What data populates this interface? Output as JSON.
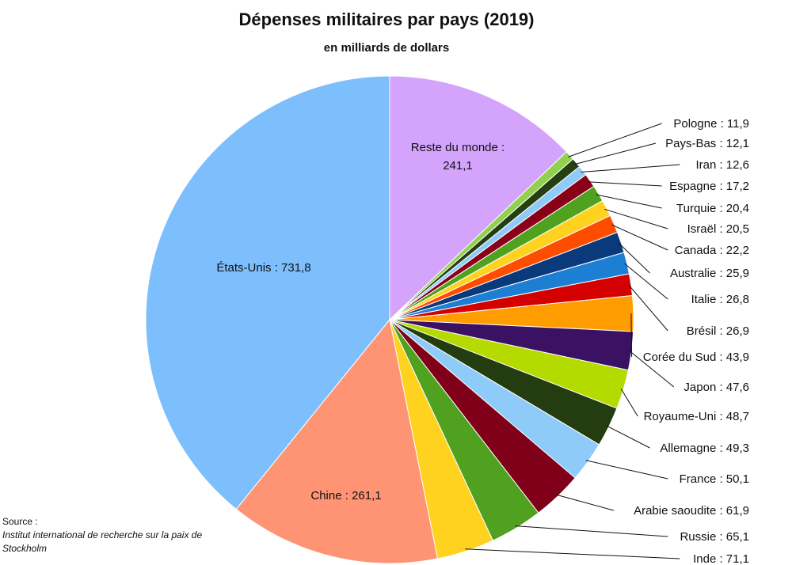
{
  "title": "Dépenses militaires par pays (2019)",
  "subtitle": "en milliards de dollars",
  "source": {
    "label": "Source :",
    "text": "Institut international de recherche sur la paix de Stockholm"
  },
  "chart_data": {
    "type": "pie",
    "unit": "milliards de dollars",
    "start": "top",
    "direction": "clockwise",
    "slices": [
      {
        "label": "Reste du monde",
        "value": 241.1,
        "display": "241,1",
        "color": "#D4A3FB"
      },
      {
        "label": "Pologne",
        "value": 11.9,
        "display": "11,9",
        "color": "#92D050"
      },
      {
        "label": "Pays-Bas",
        "value": 12.1,
        "display": "12,1",
        "color": "#243F12"
      },
      {
        "label": "Iran",
        "value": 12.6,
        "display": "12,6",
        "color": "#8FCBF8"
      },
      {
        "label": "Espagne",
        "value": 17.2,
        "display": "17,2",
        "color": "#8B0019"
      },
      {
        "label": "Turquie",
        "value": 20.4,
        "display": "20,4",
        "color": "#4FA11F"
      },
      {
        "label": "Israël",
        "value": 20.5,
        "display": "20,5",
        "color": "#FFD21F"
      },
      {
        "label": "Canada",
        "value": 22.2,
        "display": "22,2",
        "color": "#FF4D00"
      },
      {
        "label": "Australie",
        "value": 25.9,
        "display": "25,9",
        "color": "#0A3A7C"
      },
      {
        "label": "Italie",
        "value": 26.8,
        "display": "26,8",
        "color": "#1D7FD3"
      },
      {
        "label": "Brésil",
        "value": 26.9,
        "display": "26,9",
        "color": "#D40000"
      },
      {
        "label": "Corée du Sud",
        "value": 43.9,
        "display": "43,9",
        "color": "#FF9C00"
      },
      {
        "label": "Japon",
        "value": 47.6,
        "display": "47,6",
        "color": "#3B1163"
      },
      {
        "label": "Royaume-Uni",
        "value": 48.7,
        "display": "48,7",
        "color": "#B5DA00"
      },
      {
        "label": "Allemagne",
        "value": 49.3,
        "display": "49,3",
        "color": "#233C10"
      },
      {
        "label": "France",
        "value": 50.1,
        "display": "50,1",
        "color": "#8FCBF8"
      },
      {
        "label": "Arabie saoudite",
        "value": 61.9,
        "display": "61,9",
        "color": "#80001A"
      },
      {
        "label": "Russie",
        "value": 65.1,
        "display": "65,1",
        "color": "#4FA11F"
      },
      {
        "label": "Inde",
        "value": 71.1,
        "display": "71,1",
        "color": "#FFD21F"
      },
      {
        "label": "Chine",
        "value": 261.1,
        "display": "261,1",
        "color": "#FF9475"
      },
      {
        "label": "États-Unis",
        "value": 731.8,
        "display": "731,8",
        "color": "#7DBEFC"
      }
    ]
  }
}
